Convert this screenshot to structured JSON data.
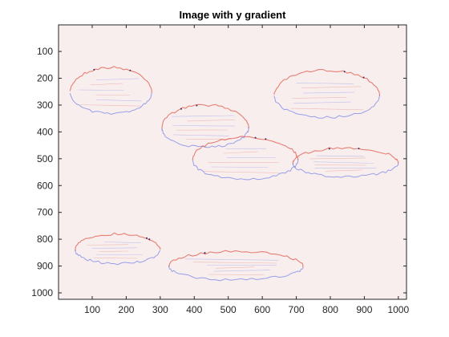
{
  "chart_data": {
    "type": "heatmap",
    "title": "Image with y gradient",
    "xlabel": "",
    "ylabel": "",
    "xlim": [
      1,
      1024
    ],
    "ylim": [
      1024,
      1
    ],
    "y_direction": "reversed",
    "grid": false,
    "legend": "none",
    "colormap": {
      "background": "#f8eeee",
      "positive": "#e05a4a",
      "negative": "#5a6ae8",
      "strong": "#3a2a6a"
    },
    "x_ticks": [
      100,
      200,
      300,
      400,
      500,
      600,
      700,
      800,
      900,
      1000
    ],
    "y_ticks": [
      100,
      200,
      300,
      400,
      500,
      600,
      700,
      800,
      900,
      1000
    ],
    "features": [
      {
        "name": "top-left-blob",
        "x": [
          35,
          275
        ],
        "y": [
          160,
          345
        ]
      },
      {
        "name": "top-right-blob",
        "x": [
          635,
          945
        ],
        "y": [
          170,
          360
        ]
      },
      {
        "name": "center-left-blob",
        "x": [
          305,
          560
        ],
        "y": [
          300,
          470
        ]
      },
      {
        "name": "center-blob",
        "x": [
          395,
          705
        ],
        "y": [
          420,
          590
        ]
      },
      {
        "name": "right-blob",
        "x": [
          690,
          1000
        ],
        "y": [
          460,
          575
        ]
      },
      {
        "name": "bottom-left-blob",
        "x": [
          50,
          300
        ],
        "y": [
          780,
          900
        ]
      },
      {
        "name": "bottom-center-blob",
        "x": [
          325,
          720
        ],
        "y": [
          845,
          960
        ]
      }
    ]
  }
}
